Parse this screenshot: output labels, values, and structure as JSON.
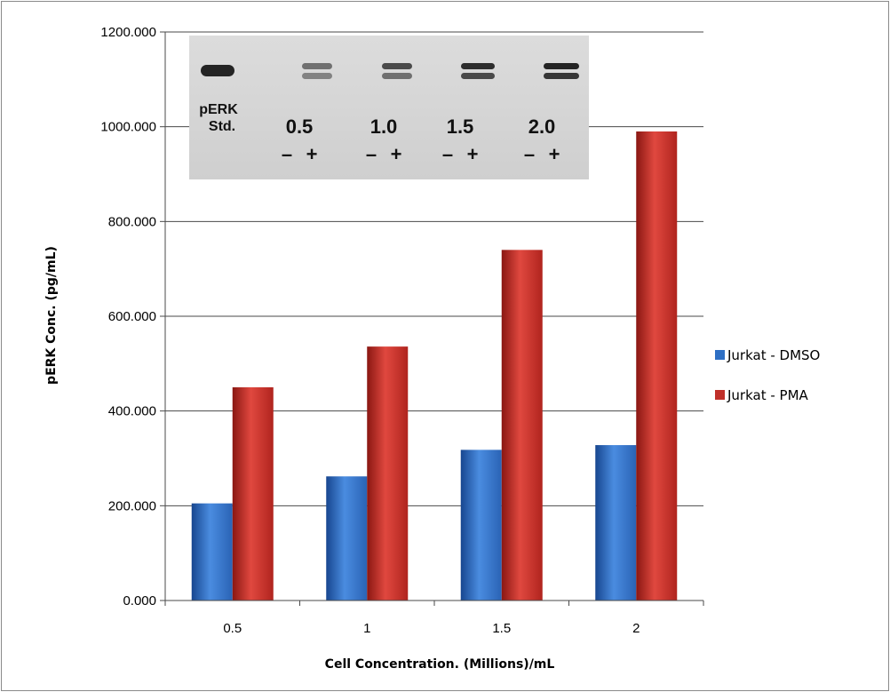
{
  "chart_data": {
    "type": "bar",
    "title": "",
    "xlabel": "Cell Concentration. (Millions)/mL",
    "ylabel": "pERK Conc. (pg/mL)",
    "categories": [
      "0.5",
      "1",
      "1.5",
      "2"
    ],
    "ylim": [
      0,
      1200
    ],
    "yticks": [
      "0.000",
      "200.000",
      "400.000",
      "600.000",
      "800.000",
      "1000.000",
      "1200.000"
    ],
    "grid": true,
    "legend_position": "right",
    "series": [
      {
        "name": "Jurkat - DMSO",
        "color": "#2e6fc4",
        "values": [
          205,
          262,
          318,
          328
        ]
      },
      {
        "name": "Jurkat - PMA",
        "color": "#c0302a",
        "values": [
          450,
          536,
          740,
          990
        ]
      }
    ]
  },
  "inset": {
    "standard_label_line1": "pERK",
    "standard_label_line2": "Std.",
    "lane_groups": [
      "0.5",
      "1.0",
      "1.5",
      "2.0"
    ],
    "minus_sign": "–",
    "plus_sign": "+"
  }
}
